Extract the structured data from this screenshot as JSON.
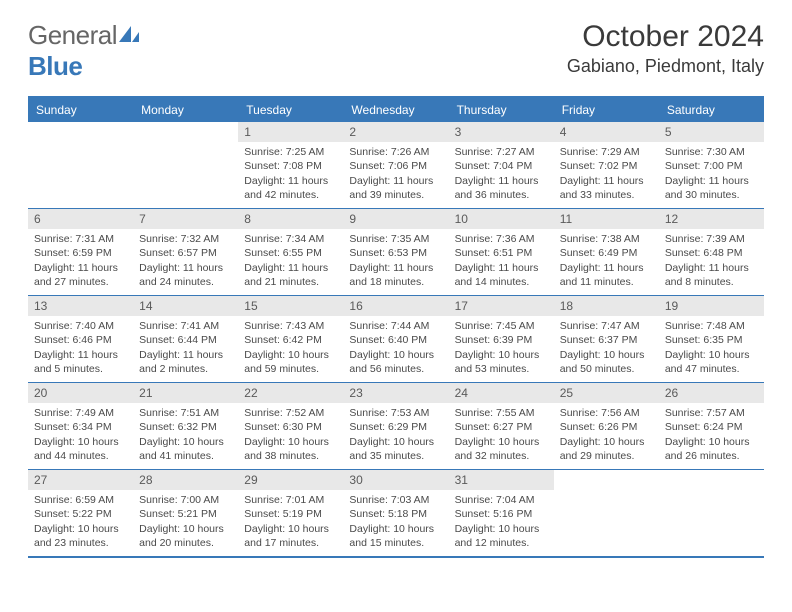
{
  "logo": {
    "text1": "General",
    "text2": "Blue"
  },
  "title": "October 2024",
  "location": "Gabiano, Piedmont, Italy",
  "colors": {
    "brand_blue": "#3878b8",
    "header_bg": "#3878b8",
    "header_text": "#ffffff",
    "daynum_bg": "#e8e8e8",
    "daynum_text": "#5a5a5a",
    "body_text": "#4a4a4a",
    "rule": "#3878b8"
  },
  "dayheads": [
    "Sunday",
    "Monday",
    "Tuesday",
    "Wednesday",
    "Thursday",
    "Friday",
    "Saturday"
  ],
  "weeks": [
    [
      null,
      null,
      {
        "n": "1",
        "sr": "Sunrise: 7:25 AM",
        "ss": "Sunset: 7:08 PM",
        "dl": "Daylight: 11 hours and 42 minutes."
      },
      {
        "n": "2",
        "sr": "Sunrise: 7:26 AM",
        "ss": "Sunset: 7:06 PM",
        "dl": "Daylight: 11 hours and 39 minutes."
      },
      {
        "n": "3",
        "sr": "Sunrise: 7:27 AM",
        "ss": "Sunset: 7:04 PM",
        "dl": "Daylight: 11 hours and 36 minutes."
      },
      {
        "n": "4",
        "sr": "Sunrise: 7:29 AM",
        "ss": "Sunset: 7:02 PM",
        "dl": "Daylight: 11 hours and 33 minutes."
      },
      {
        "n": "5",
        "sr": "Sunrise: 7:30 AM",
        "ss": "Sunset: 7:00 PM",
        "dl": "Daylight: 11 hours and 30 minutes."
      }
    ],
    [
      {
        "n": "6",
        "sr": "Sunrise: 7:31 AM",
        "ss": "Sunset: 6:59 PM",
        "dl": "Daylight: 11 hours and 27 minutes."
      },
      {
        "n": "7",
        "sr": "Sunrise: 7:32 AM",
        "ss": "Sunset: 6:57 PM",
        "dl": "Daylight: 11 hours and 24 minutes."
      },
      {
        "n": "8",
        "sr": "Sunrise: 7:34 AM",
        "ss": "Sunset: 6:55 PM",
        "dl": "Daylight: 11 hours and 21 minutes."
      },
      {
        "n": "9",
        "sr": "Sunrise: 7:35 AM",
        "ss": "Sunset: 6:53 PM",
        "dl": "Daylight: 11 hours and 18 minutes."
      },
      {
        "n": "10",
        "sr": "Sunrise: 7:36 AM",
        "ss": "Sunset: 6:51 PM",
        "dl": "Daylight: 11 hours and 14 minutes."
      },
      {
        "n": "11",
        "sr": "Sunrise: 7:38 AM",
        "ss": "Sunset: 6:49 PM",
        "dl": "Daylight: 11 hours and 11 minutes."
      },
      {
        "n": "12",
        "sr": "Sunrise: 7:39 AM",
        "ss": "Sunset: 6:48 PM",
        "dl": "Daylight: 11 hours and 8 minutes."
      }
    ],
    [
      {
        "n": "13",
        "sr": "Sunrise: 7:40 AM",
        "ss": "Sunset: 6:46 PM",
        "dl": "Daylight: 11 hours and 5 minutes."
      },
      {
        "n": "14",
        "sr": "Sunrise: 7:41 AM",
        "ss": "Sunset: 6:44 PM",
        "dl": "Daylight: 11 hours and 2 minutes."
      },
      {
        "n": "15",
        "sr": "Sunrise: 7:43 AM",
        "ss": "Sunset: 6:42 PM",
        "dl": "Daylight: 10 hours and 59 minutes."
      },
      {
        "n": "16",
        "sr": "Sunrise: 7:44 AM",
        "ss": "Sunset: 6:40 PM",
        "dl": "Daylight: 10 hours and 56 minutes."
      },
      {
        "n": "17",
        "sr": "Sunrise: 7:45 AM",
        "ss": "Sunset: 6:39 PM",
        "dl": "Daylight: 10 hours and 53 minutes."
      },
      {
        "n": "18",
        "sr": "Sunrise: 7:47 AM",
        "ss": "Sunset: 6:37 PM",
        "dl": "Daylight: 10 hours and 50 minutes."
      },
      {
        "n": "19",
        "sr": "Sunrise: 7:48 AM",
        "ss": "Sunset: 6:35 PM",
        "dl": "Daylight: 10 hours and 47 minutes."
      }
    ],
    [
      {
        "n": "20",
        "sr": "Sunrise: 7:49 AM",
        "ss": "Sunset: 6:34 PM",
        "dl": "Daylight: 10 hours and 44 minutes."
      },
      {
        "n": "21",
        "sr": "Sunrise: 7:51 AM",
        "ss": "Sunset: 6:32 PM",
        "dl": "Daylight: 10 hours and 41 minutes."
      },
      {
        "n": "22",
        "sr": "Sunrise: 7:52 AM",
        "ss": "Sunset: 6:30 PM",
        "dl": "Daylight: 10 hours and 38 minutes."
      },
      {
        "n": "23",
        "sr": "Sunrise: 7:53 AM",
        "ss": "Sunset: 6:29 PM",
        "dl": "Daylight: 10 hours and 35 minutes."
      },
      {
        "n": "24",
        "sr": "Sunrise: 7:55 AM",
        "ss": "Sunset: 6:27 PM",
        "dl": "Daylight: 10 hours and 32 minutes."
      },
      {
        "n": "25",
        "sr": "Sunrise: 7:56 AM",
        "ss": "Sunset: 6:26 PM",
        "dl": "Daylight: 10 hours and 29 minutes."
      },
      {
        "n": "26",
        "sr": "Sunrise: 7:57 AM",
        "ss": "Sunset: 6:24 PM",
        "dl": "Daylight: 10 hours and 26 minutes."
      }
    ],
    [
      {
        "n": "27",
        "sr": "Sunrise: 6:59 AM",
        "ss": "Sunset: 5:22 PM",
        "dl": "Daylight: 10 hours and 23 minutes."
      },
      {
        "n": "28",
        "sr": "Sunrise: 7:00 AM",
        "ss": "Sunset: 5:21 PM",
        "dl": "Daylight: 10 hours and 20 minutes."
      },
      {
        "n": "29",
        "sr": "Sunrise: 7:01 AM",
        "ss": "Sunset: 5:19 PM",
        "dl": "Daylight: 10 hours and 17 minutes."
      },
      {
        "n": "30",
        "sr": "Sunrise: 7:03 AM",
        "ss": "Sunset: 5:18 PM",
        "dl": "Daylight: 10 hours and 15 minutes."
      },
      {
        "n": "31",
        "sr": "Sunrise: 7:04 AM",
        "ss": "Sunset: 5:16 PM",
        "dl": "Daylight: 10 hours and 12 minutes."
      },
      null,
      null
    ]
  ]
}
